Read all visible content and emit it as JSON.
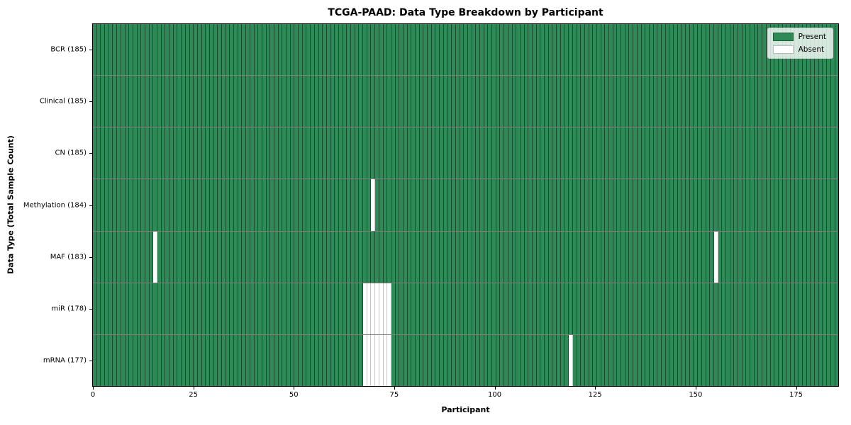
{
  "title": "TCGA-PAAD: Data Type Breakdown by Participant",
  "xlabel": "Participant",
  "ylabel": "Data Type (Total Sample Count)",
  "legend": {
    "present_label": "Present",
    "absent_label": "Absent"
  },
  "colors": {
    "present": "#2e8b57",
    "absent": "#ffffff",
    "present_edge": "rgba(0,0,0,0.45)",
    "absent_edge": "#c6c6c6",
    "spine": "#000000",
    "legend_bg": "rgba(255,255,255,0.8)",
    "legend_border": "#cccccc"
  },
  "chart_data": {
    "type": "heatmap",
    "title": "TCGA-PAAD: Data Type Breakdown by Participant",
    "xlabel": "Participant",
    "ylabel": "Data Type (Total Sample Count)",
    "n_participants": 185,
    "xlim": [
      0,
      185.5
    ],
    "x_ticks": [
      0,
      25,
      50,
      75,
      100,
      125,
      150,
      175
    ],
    "grid": false,
    "legend_entries": [
      "Present",
      "Absent"
    ],
    "legend_position": "upper right",
    "rows": [
      {
        "name": "BCR",
        "label": "BCR (185)",
        "present_count": 185,
        "absent_participants": []
      },
      {
        "name": "Clinical",
        "label": "Clinical (185)",
        "present_count": 185,
        "absent_participants": []
      },
      {
        "name": "CN",
        "label": "CN (185)",
        "present_count": 185,
        "absent_participants": []
      },
      {
        "name": "Methylation",
        "label": "Methylation (184)",
        "present_count": 184,
        "absent_participants": [
          69
        ]
      },
      {
        "name": "MAF",
        "label": "MAF (183)",
        "present_count": 183,
        "absent_participants": [
          15,
          154
        ]
      },
      {
        "name": "miR",
        "label": "miR (178)",
        "present_count": 178,
        "absent_participants": [
          67,
          68,
          69,
          70,
          71,
          72,
          73
        ]
      },
      {
        "name": "mRNA",
        "label": "mRNA (177)",
        "present_count": 177,
        "absent_participants": [
          67,
          68,
          69,
          70,
          71,
          72,
          73,
          118
        ]
      }
    ]
  }
}
